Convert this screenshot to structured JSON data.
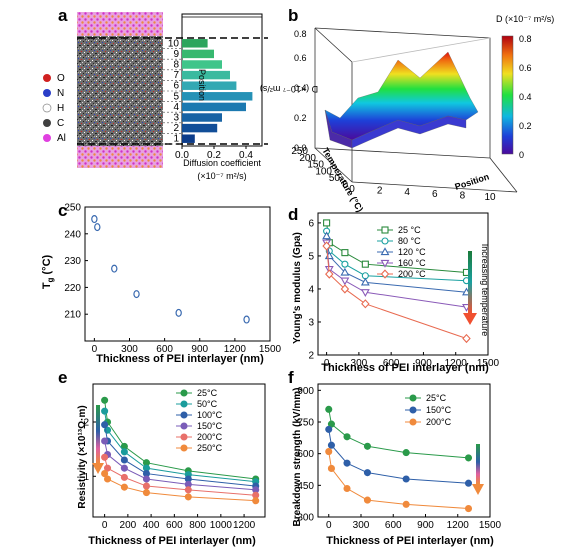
{
  "panel_labels": {
    "a": "a",
    "b": "b",
    "c": "c",
    "d": "d",
    "e": "e",
    "f": "f"
  },
  "legend_atoms": [
    {
      "label": "O",
      "color": "#d02020"
    },
    {
      "label": "N",
      "color": "#2a3ec8"
    },
    {
      "label": "H",
      "color": "#ffffff"
    },
    {
      "label": "C",
      "color": "#404040"
    },
    {
      "label": "Al",
      "color": "#e040e0"
    }
  ],
  "temperature_trend_label": "Increasing temperature",
  "chart_data": [
    {
      "panel": "a",
      "type": "bar",
      "orientation": "horizontal",
      "categories": [
        "1",
        "2",
        "3",
        "4",
        "5",
        "6",
        "7",
        "8",
        "9",
        "10"
      ],
      "values": [
        0.08,
        0.22,
        0.25,
        0.4,
        0.44,
        0.34,
        0.3,
        0.25,
        0.2,
        0.16
      ],
      "xlabel": "Diffusion coefficient",
      "xlabel_unit": "(×10⁻⁷ m²/s)",
      "ylabel": "Position",
      "xlim": [
        0,
        0.5
      ],
      "xticks": [
        "0.0",
        "0.2",
        "0.4"
      ],
      "colors": [
        "#0c3c8a",
        "#114e98",
        "#1863a4",
        "#1c79b0",
        "#2591b6",
        "#32a8b3",
        "#3aba9f",
        "#3fc58a",
        "#37b86f",
        "#2ba55c"
      ]
    },
    {
      "panel": "b",
      "type": "surface3d",
      "colorbar_title": "D (×10⁻⁷ m²/s)",
      "colorbar_ticks": [
        "0",
        "0.2",
        "0.4",
        "0.6",
        "0.8"
      ],
      "zlabel": "D (×10⁻⁷ m²/s)",
      "zticks": [
        "0.0",
        "0.2",
        "0.4",
        "0.6",
        "0.8"
      ],
      "xlabel": "Position",
      "xticks": [
        "0",
        "1",
        "2",
        "3",
        "4",
        "5",
        "6",
        "7",
        "8",
        "9",
        "10"
      ],
      "ylabel": "Temperature (°C)",
      "yticks": [
        "0",
        "50",
        "100",
        "150",
        "200",
        "250"
      ]
    },
    {
      "panel": "c",
      "type": "scatter",
      "xlabel": "Thickness of PEI interlayer (nm)",
      "ylabel": "T",
      "ylabel_sub": "g",
      "ylabel_unit": " (°C)",
      "xlim": [
        -80,
        1500
      ],
      "ylim": [
        200,
        250
      ],
      "xticks": [
        0,
        300,
        600,
        900,
        1200,
        1500
      ],
      "yticks": [
        210,
        220,
        230,
        240,
        250
      ],
      "marker_color": "#3a6ab0",
      "series": [
        {
          "x": [
            0,
            25,
            170,
            360,
            720,
            1300
          ],
          "y": [
            245.5,
            242.5,
            227.0,
            217.5,
            210.5,
            208.0
          ]
        }
      ]
    },
    {
      "panel": "d",
      "type": "line",
      "xlabel": "Thickness of PEI interlayer (nm)",
      "ylabel": "Young's modulus (Gpa)",
      "xlim": [
        -80,
        1500
      ],
      "ylim": [
        2,
        6.3
      ],
      "xticks": [
        0,
        300,
        600,
        900,
        1200,
        1500
      ],
      "yticks": [
        2,
        3,
        4,
        5,
        6
      ],
      "x": [
        0,
        25,
        170,
        360,
        1300
      ],
      "series": [
        {
          "name": "25 °C",
          "color": "#2a8a3c",
          "marker": "square",
          "values": [
            6.0,
            5.4,
            5.1,
            4.75,
            4.5
          ]
        },
        {
          "name": "80 °C",
          "color": "#1aa0a0",
          "marker": "circle",
          "values": [
            5.75,
            5.15,
            4.75,
            4.4,
            4.25
          ]
        },
        {
          "name": "120 °C",
          "color": "#3a6ab0",
          "marker": "triangle",
          "values": [
            5.6,
            5.0,
            4.5,
            4.2,
            3.9
          ]
        },
        {
          "name": "160 °C",
          "color": "#8a5ab8",
          "marker": "triangle-down",
          "values": [
            5.4,
            4.6,
            4.25,
            3.9,
            3.45
          ]
        },
        {
          "name": "200 °C",
          "color": "#e86a50",
          "marker": "diamond",
          "values": [
            5.3,
            4.45,
            4.0,
            3.55,
            2.5
          ]
        }
      ]
    },
    {
      "panel": "e",
      "type": "line",
      "xlabel": "Thickness of PEI interlayer (nm)",
      "ylabel": "Resistivity (×10¹³Ω·m)",
      "xlim": [
        -100,
        1380
      ],
      "ylim": [
        0.25,
        2.7
      ],
      "xticks": [
        0,
        200,
        400,
        600,
        800,
        1000,
        1200
      ],
      "yticks": [
        1,
        2
      ],
      "x": [
        0,
        25,
        170,
        360,
        720,
        1300
      ],
      "series": [
        {
          "name": "25°C",
          "color": "#2a9a4a",
          "values": [
            2.4,
            2.0,
            1.55,
            1.25,
            1.1,
            0.95
          ]
        },
        {
          "name": "50°C",
          "color": "#1a9c9c",
          "values": [
            2.2,
            1.85,
            1.45,
            1.15,
            1.03,
            0.9
          ]
        },
        {
          "name": "100°C",
          "color": "#2e5fa8",
          "values": [
            1.95,
            1.65,
            1.3,
            1.05,
            0.95,
            0.82
          ]
        },
        {
          "name": "150°C",
          "color": "#7a5cb8",
          "values": [
            1.65,
            1.4,
            1.15,
            0.95,
            0.85,
            0.75
          ]
        },
        {
          "name": "200°C",
          "color": "#e8706a",
          "values": [
            1.35,
            1.15,
            0.98,
            0.82,
            0.75,
            0.65
          ]
        },
        {
          "name": "250°C",
          "color": "#f08a3c",
          "values": [
            1.05,
            0.95,
            0.8,
            0.7,
            0.62,
            0.55
          ]
        }
      ]
    },
    {
      "panel": "f",
      "type": "line",
      "xlabel": "Thickness of PEI interlayer (nm)",
      "ylabel": "Breakdown strength (kV/mm)",
      "xlim": [
        -100,
        1500
      ],
      "ylim": [
        300,
        930
      ],
      "xticks": [
        0,
        300,
        600,
        900,
        1200,
        1500
      ],
      "yticks": [
        300,
        450,
        600,
        750,
        900
      ],
      "x": [
        0,
        25,
        170,
        360,
        720,
        1300
      ],
      "series": [
        {
          "name": "25°C",
          "color": "#2a9a4a",
          "values": [
            810,
            740,
            680,
            635,
            605,
            580
          ]
        },
        {
          "name": "150°C",
          "color": "#2e5fa8",
          "values": [
            715,
            640,
            555,
            510,
            480,
            460
          ]
        },
        {
          "name": "200°C",
          "color": "#f08a3c",
          "values": [
            610,
            530,
            435,
            380,
            360,
            340
          ]
        }
      ]
    }
  ]
}
